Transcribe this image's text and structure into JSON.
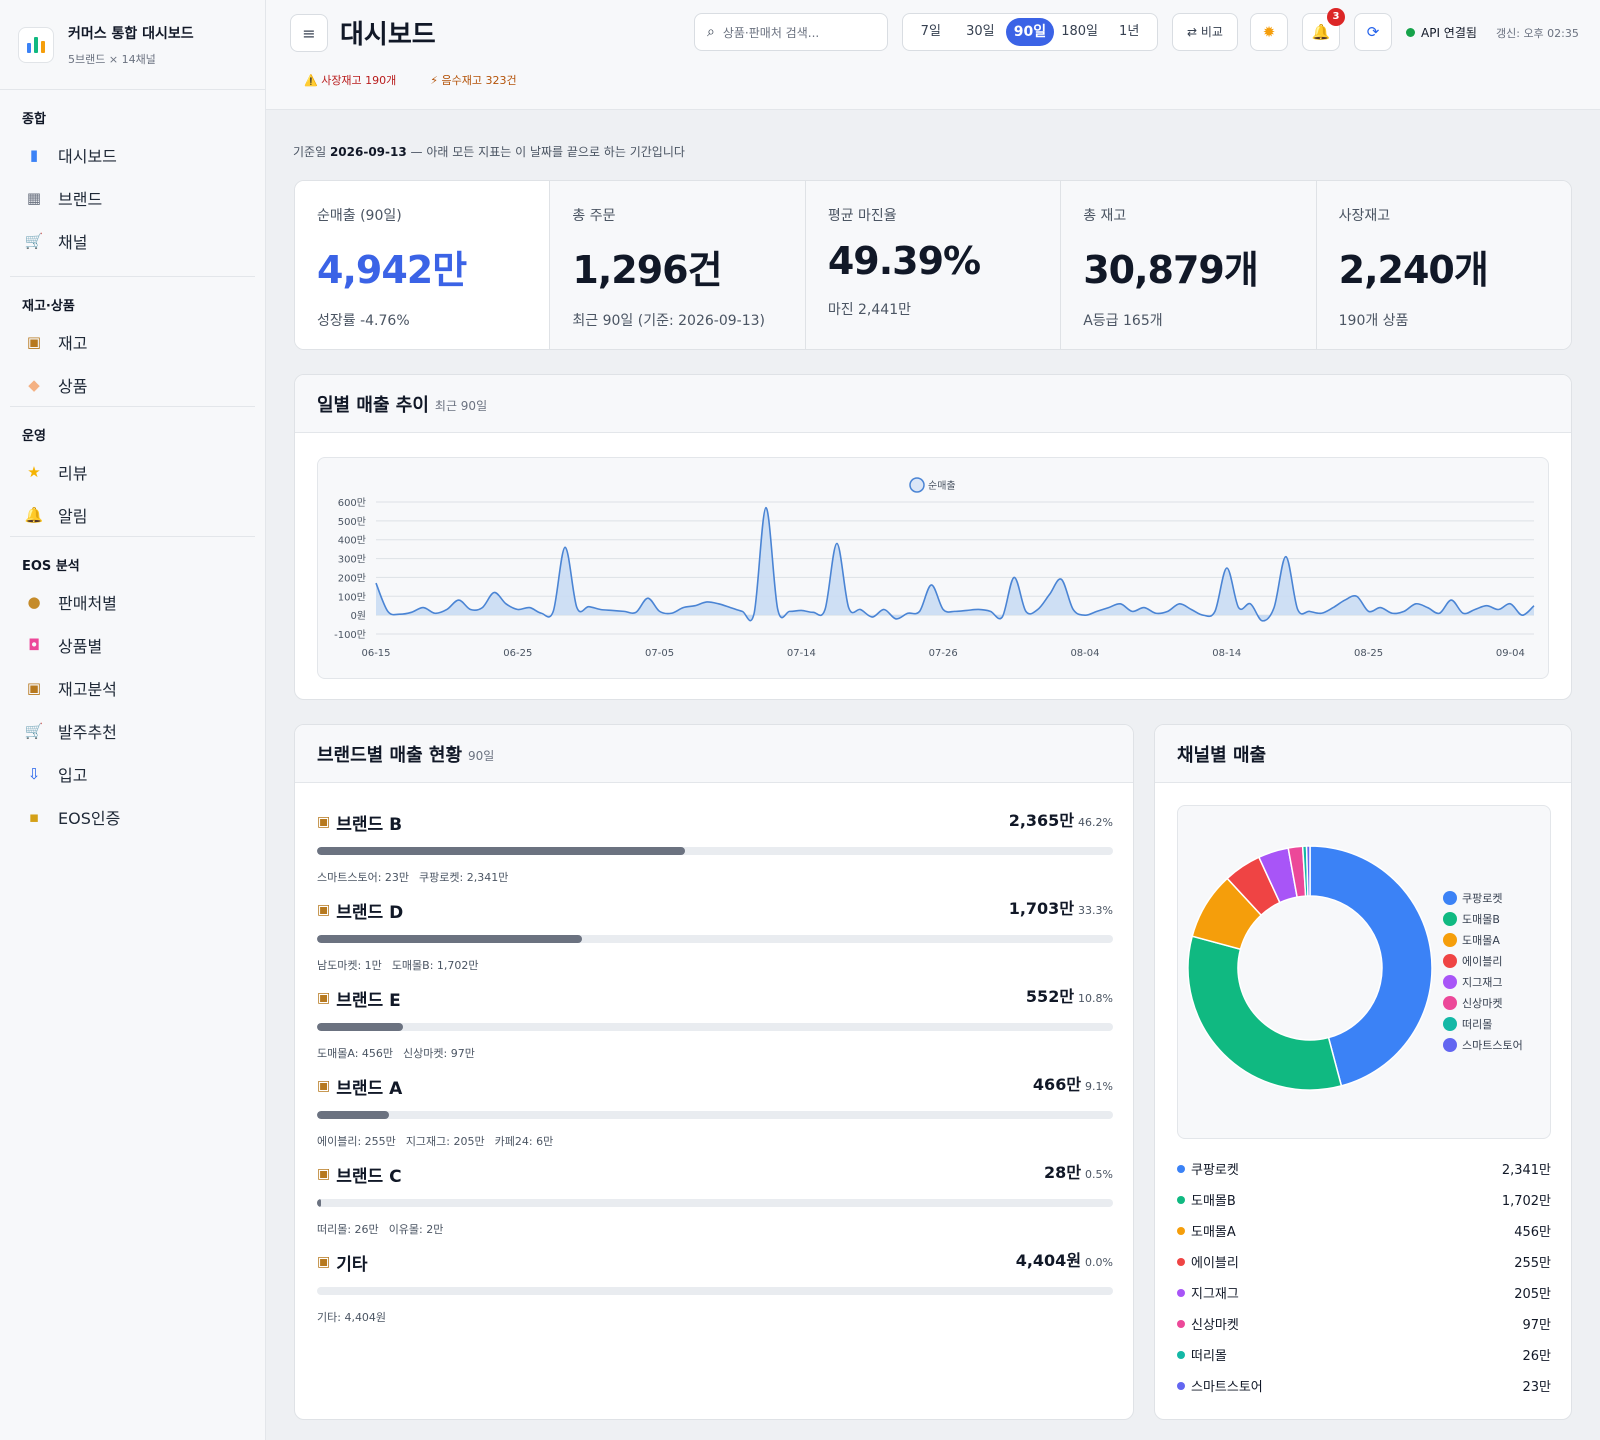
{
  "app": {
    "title": "커머스 통합 대시보드",
    "subtitle": "5브랜드 × 14채널"
  },
  "sidebar": {
    "sections": [
      {
        "heading": "종합",
        "items": [
          {
            "label": "대시보드",
            "icon": "bar-chart-icon"
          },
          {
            "label": "브랜드",
            "icon": "building-icon"
          },
          {
            "label": "채널",
            "icon": "cart-icon"
          }
        ]
      },
      {
        "heading": "재고·상품",
        "items": [
          {
            "label": "재고",
            "icon": "box-icon"
          },
          {
            "label": "상품",
            "icon": "tag-icon"
          }
        ]
      },
      {
        "heading": "운영",
        "items": [
          {
            "label": "리뷰",
            "icon": "star-icon"
          },
          {
            "label": "알림",
            "icon": "bell-icon"
          }
        ]
      },
      {
        "heading": "EOS 분석",
        "items": [
          {
            "label": "판매처별",
            "icon": "money-bag-icon"
          },
          {
            "label": "상품별",
            "icon": "shopping-bag-icon"
          },
          {
            "label": "재고분석",
            "icon": "box-icon"
          },
          {
            "label": "발주추천",
            "icon": "cart-icon"
          },
          {
            "label": "입고",
            "icon": "inbox-icon"
          },
          {
            "label": "EOS인증",
            "icon": "lock-icon"
          }
        ]
      }
    ]
  },
  "header": {
    "menu_icon": "≡",
    "page_title": "대시보드",
    "alerts": [
      "⚠️ 사장재고 190개",
      "⚡ 음수재고 323건"
    ],
    "search_placeholder": "상품·판매처 검색...",
    "ranges": [
      "7일",
      "30일",
      "90일",
      "180일",
      "1년"
    ],
    "active_range": "90일",
    "compare_label": "⇄ 비교",
    "notification_count": "3",
    "api_status": "API 연결됨",
    "updated": "갱신: 오후 02:35"
  },
  "reference": {
    "prefix": "기준일",
    "date": "2026-09-13",
    "suffix": "— 아래 모든 지표는 이 날짜를 끝으로 하는 기간입니다"
  },
  "kpis": [
    {
      "label": "순매출 (90일)",
      "value": "4,942만",
      "sub": "성장률 -4.76%"
    },
    {
      "label": "총 주문",
      "value": "1,296건",
      "sub": "최근 90일 (기준: 2026-09-13)"
    },
    {
      "label": "평균 마진율",
      "value": "49.39%",
      "sub": "마진 2,441만"
    },
    {
      "label": "총 재고",
      "value": "30,879개",
      "sub": "A등급 165개"
    },
    {
      "label": "사장재고",
      "value": "2,240개",
      "sub": "190개 상품"
    }
  ],
  "daily_chart": {
    "title": "일별 매출 추이",
    "hint": "최근 90일"
  },
  "chart_data": [
    {
      "type": "area",
      "series": [
        {
          "name": "순매출",
          "color": "#4a84d4"
        }
      ],
      "y_ticks": [
        "600만",
        "500만",
        "400만",
        "300만",
        "200만",
        "100만",
        "0원",
        "-100만"
      ],
      "ylim": [
        -100,
        600
      ],
      "x_ticks": [
        "06-15",
        "06-25",
        "07-05",
        "07-14",
        "07-26",
        "08-04",
        "08-14",
        "08-25",
        "09-04"
      ],
      "values": [
        170,
        20,
        5,
        15,
        40,
        10,
        30,
        80,
        30,
        40,
        120,
        60,
        30,
        40,
        10,
        20,
        360,
        40,
        45,
        30,
        25,
        20,
        15,
        90,
        20,
        10,
        40,
        50,
        70,
        60,
        40,
        20,
        10,
        570,
        30,
        20,
        25,
        15,
        30,
        380,
        40,
        30,
        -10,
        30,
        -20,
        10,
        20,
        160,
        30,
        20,
        25,
        30,
        20,
        -10,
        200,
        20,
        30,
        110,
        190,
        30,
        0,
        20,
        40,
        60,
        20,
        40,
        10,
        20,
        60,
        30,
        0,
        20,
        250,
        40,
        60,
        -30,
        40,
        310,
        30,
        20,
        10,
        40,
        80,
        100,
        20,
        40,
        10,
        20,
        60,
        40,
        10,
        80,
        10,
        30,
        50,
        30,
        60,
        0,
        50
      ]
    },
    {
      "type": "pie",
      "categories": [
        "쿠팡로켓",
        "도매몰B",
        "도매몰A",
        "에이블리",
        "지그재그",
        "신상마켓",
        "떠리몰",
        "스마트스토어"
      ],
      "values": [
        2341,
        1702,
        456,
        255,
        205,
        97,
        26,
        23
      ],
      "colors": [
        "#3b82f6",
        "#10b981",
        "#f59e0b",
        "#ef4444",
        "#a855f7",
        "#ec4899",
        "#14b8a6",
        "#6366f1"
      ]
    }
  ],
  "brands": {
    "title": "브랜드별 매출 현황",
    "hint": "90일",
    "items": [
      {
        "name": "브랜드 B",
        "amount": "2,365만",
        "pct": "46.2%",
        "share": 0.462,
        "details": [
          "스마트스토어: 23만",
          "쿠팡로켓: 2,341만"
        ]
      },
      {
        "name": "브랜드 D",
        "amount": "1,703만",
        "pct": "33.3%",
        "share": 0.333,
        "details": [
          "남도마켓: 1만",
          "도매몰B: 1,702만"
        ]
      },
      {
        "name": "브랜드 E",
        "amount": "552만",
        "pct": "10.8%",
        "share": 0.108,
        "details": [
          "도매몰A: 456만",
          "신상마켓: 97만"
        ]
      },
      {
        "name": "브랜드 A",
        "amount": "466만",
        "pct": "9.1%",
        "share": 0.091,
        "details": [
          "에이블리: 255만",
          "지그재그: 205만",
          "카페24: 6만"
        ]
      },
      {
        "name": "브랜드 C",
        "amount": "28만",
        "pct": "0.5%",
        "share": 0.005,
        "details": [
          "떠리몰: 26만",
          "이유몰: 2만"
        ]
      },
      {
        "name": "기타",
        "amount": "4,404원",
        "pct": "0.0%",
        "share": 0.0,
        "details": [
          "기타: 4,404원"
        ]
      }
    ]
  },
  "channels": {
    "title": "채널별 매출",
    "rows": [
      {
        "name": "쿠팡로켓",
        "amount": "2,341만"
      },
      {
        "name": "도매몰B",
        "amount": "1,702만"
      },
      {
        "name": "도매몰A",
        "amount": "456만"
      },
      {
        "name": "에이블리",
        "amount": "255만"
      },
      {
        "name": "지그재그",
        "amount": "205만"
      },
      {
        "name": "신상마켓",
        "amount": "97만"
      },
      {
        "name": "떠리몰",
        "amount": "26만"
      },
      {
        "name": "스마트스토어",
        "amount": "23만"
      }
    ]
  }
}
